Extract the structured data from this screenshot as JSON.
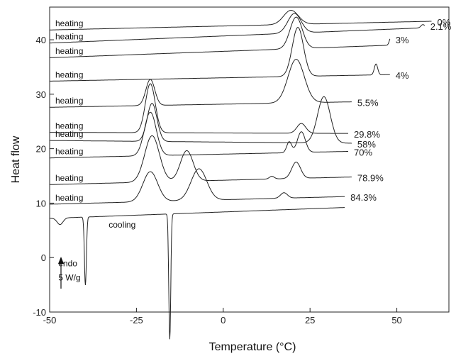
{
  "chart_data": {
    "type": "line",
    "xlabel": "Temperature (°C)",
    "ylabel": "Heat flow",
    "xlim": [
      -50,
      65
    ],
    "ylim": [
      -10,
      46
    ],
    "xticks": [
      -50,
      -25,
      0,
      25,
      50
    ],
    "yticks": [
      -10,
      0,
      10,
      20,
      30,
      40
    ],
    "grid": false,
    "series": [
      {
        "name": "0%",
        "label": "heating",
        "baseline": [
          [
            -50,
            41.8
          ],
          [
            60,
            43.4
          ]
        ],
        "peaks": [
          {
            "x": 19.5,
            "h": 2.6,
            "w": 3.0
          }
        ]
      },
      {
        "name": "2.1%",
        "label": "heating",
        "baseline": [
          [
            -50,
            39.4
          ],
          [
            58,
            42.2
          ]
        ],
        "peaks": [
          {
            "x": 20.5,
            "h": 3.6,
            "w": 2.7
          },
          {
            "x": 57.5,
            "h": 0.6,
            "w": 0.8
          }
        ]
      },
      {
        "name": "3%",
        "label": "heating",
        "baseline": [
          [
            -50,
            36.7
          ],
          [
            48,
            39.0
          ]
        ],
        "peaks": [
          {
            "x": 21.0,
            "h": 5.8,
            "w": 2.5
          },
          {
            "x": 48.3,
            "h": 1.5,
            "w": 0.6
          }
        ]
      },
      {
        "name": "4%",
        "label": "heating",
        "baseline": [
          [
            -50,
            32.4
          ],
          [
            48,
            33.6
          ]
        ],
        "peaks": [
          {
            "x": 21.5,
            "h": 9.0,
            "w": 2.3
          },
          {
            "x": 44.0,
            "h": 2.0,
            "w": 0.7
          }
        ]
      },
      {
        "name": "5.5%",
        "label": "heating",
        "baseline": [
          [
            -50,
            27.6
          ],
          [
            37,
            28.6
          ]
        ],
        "peaks": [
          {
            "x": -21.0,
            "h": 4.8,
            "w": 1.8
          },
          {
            "x": 21.0,
            "h": 8.0,
            "w": 3.3
          }
        ]
      },
      {
        "name": "29.8%",
        "label": "heating",
        "baseline": [
          [
            -50,
            23.0
          ],
          [
            36,
            22.8
          ]
        ],
        "peaks": [
          {
            "x": -21.0,
            "h": 9.0,
            "w": 2.0
          },
          {
            "x": 22.5,
            "h": 1.8,
            "w": 1.8
          }
        ]
      },
      {
        "name": "58%",
        "label": "heating",
        "baseline": [
          [
            -50,
            21.5
          ],
          [
            37,
            21.0
          ]
        ],
        "peaks": [
          {
            "x": -20.5,
            "h": 7.0,
            "w": 2.0
          },
          {
            "x": 29.0,
            "h": 8.5,
            "w": 2.6
          }
        ]
      },
      {
        "name": "70%",
        "label": "heating",
        "baseline": [
          [
            -50,
            18.3
          ],
          [
            36,
            19.5
          ]
        ],
        "peaks": [
          {
            "x": -21.0,
            "h": 8.0,
            "w": 2.4
          },
          {
            "x": 19.0,
            "h": 2.0,
            "w": 1.0
          },
          {
            "x": 22.5,
            "h": 3.8,
            "w": 1.6
          }
        ]
      },
      {
        "name": "78.9%",
        "label": "heating",
        "baseline": [
          [
            -50,
            13.4
          ],
          [
            37,
            14.8
          ]
        ],
        "peaks": [
          {
            "x": -20.5,
            "h": 8.5,
            "w": 3.0
          },
          {
            "x": -10.5,
            "h": 5.6,
            "w": 2.6
          },
          {
            "x": 14.0,
            "h": 0.5,
            "w": 1.0
          },
          {
            "x": 21.0,
            "h": 3.0,
            "w": 1.8
          }
        ]
      },
      {
        "name": "84.3%",
        "label": "heating",
        "baseline": [
          [
            -50,
            9.8
          ],
          [
            35,
            11.2
          ]
        ],
        "peaks": [
          {
            "x": -21.0,
            "h": 5.5,
            "w": 3.0
          },
          {
            "x": -7.0,
            "h": 5.8,
            "w": 3.2
          },
          {
            "x": 17.5,
            "h": 1.0,
            "w": 1.4
          }
        ]
      },
      {
        "name": "",
        "label": "cooling",
        "baseline": [
          [
            -50,
            7.2
          ],
          [
            35,
            9.2
          ]
        ],
        "peaks": [
          {
            "x": -47.0,
            "h": -1.2,
            "w": 1.2
          },
          {
            "x": -39.7,
            "h": -12.5,
            "w": 0.4
          },
          {
            "x": -15.4,
            "h": -23.0,
            "w": 0.4
          }
        ]
      }
    ],
    "annotations": [
      {
        "text": "endo",
        "x": -47.5,
        "y": -1.6
      },
      {
        "text": "5 W/g",
        "x": -47.5,
        "y": -4.2
      }
    ]
  }
}
